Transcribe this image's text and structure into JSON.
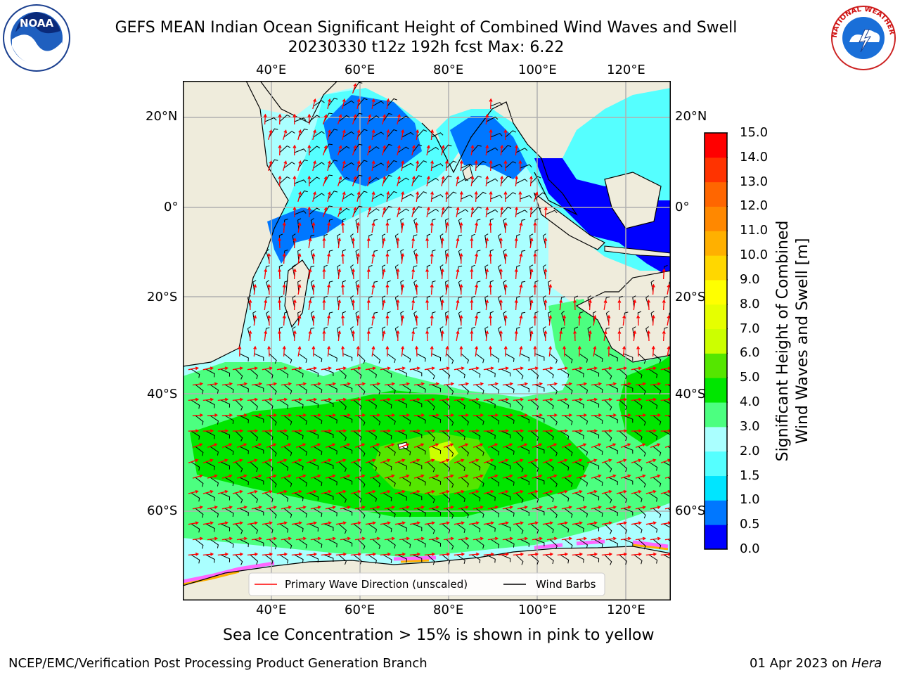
{
  "header": {
    "title_line1": "GEFS MEAN Indian Ocean Significant Height of Combined Wind Waves and Swell",
    "title_line2": "20230330 t12z 192h fcst   Max: 6.22"
  },
  "logos": {
    "left": {
      "name": "noaa-logo",
      "text": "NOAA"
    },
    "right": {
      "name": "nws-logo",
      "text": "NATIONAL WEATHER SERVICE"
    }
  },
  "map": {
    "lon_top_labels": [
      "40°E",
      "60°E",
      "80°E",
      "100°E",
      "120°E"
    ],
    "lon_bottom_labels": [
      "40°E",
      "60°E",
      "80°E",
      "100°E",
      "120°E"
    ],
    "lat_left_labels": [
      "20°N",
      "0°",
      "20°S",
      "40°S",
      "60°S"
    ],
    "lat_right_labels": [
      "20°N",
      "0°",
      "20°S",
      "40°S",
      "60°S"
    ],
    "legend": {
      "wave_direction": "Primary Wave Direction (unscaled)",
      "wind_barbs": "Wind Barbs"
    },
    "colors": {
      "land": "#efecdc",
      "wave_arrow": "#ff0000",
      "wind_barb": "#000000",
      "grid": "#b0b0b0"
    }
  },
  "colorbar": {
    "label_line1": "Significant Height of Combined",
    "label_line2": "Wind Waves and Swell [m]",
    "ticks": [
      "0.0",
      "0.5",
      "1.0",
      "1.5",
      "2.0",
      "3.0",
      "4.0",
      "5.0",
      "6.0",
      "7.0",
      "8.0",
      "9.0",
      "10.0",
      "11.0",
      "12.0",
      "13.0",
      "14.0",
      "15.0"
    ],
    "colors": [
      "#0000ff",
      "#0077ff",
      "#00e5ff",
      "#55ffff",
      "#aaffff",
      "#4cff80",
      "#00e600",
      "#55e600",
      "#ccff00",
      "#e6ff00",
      "#ffff00",
      "#ffd700",
      "#ffb000",
      "#ff8800",
      "#ff6600",
      "#ff3300",
      "#ff0000"
    ]
  },
  "caption": "Sea Ice Concentration > 15% is shown in pink to yellow",
  "footer": {
    "left": "NCEP/EMC/Verification Post Processing Product Generation Branch",
    "right_date": "01 Apr 2023 on ",
    "right_host": "Hera"
  }
}
